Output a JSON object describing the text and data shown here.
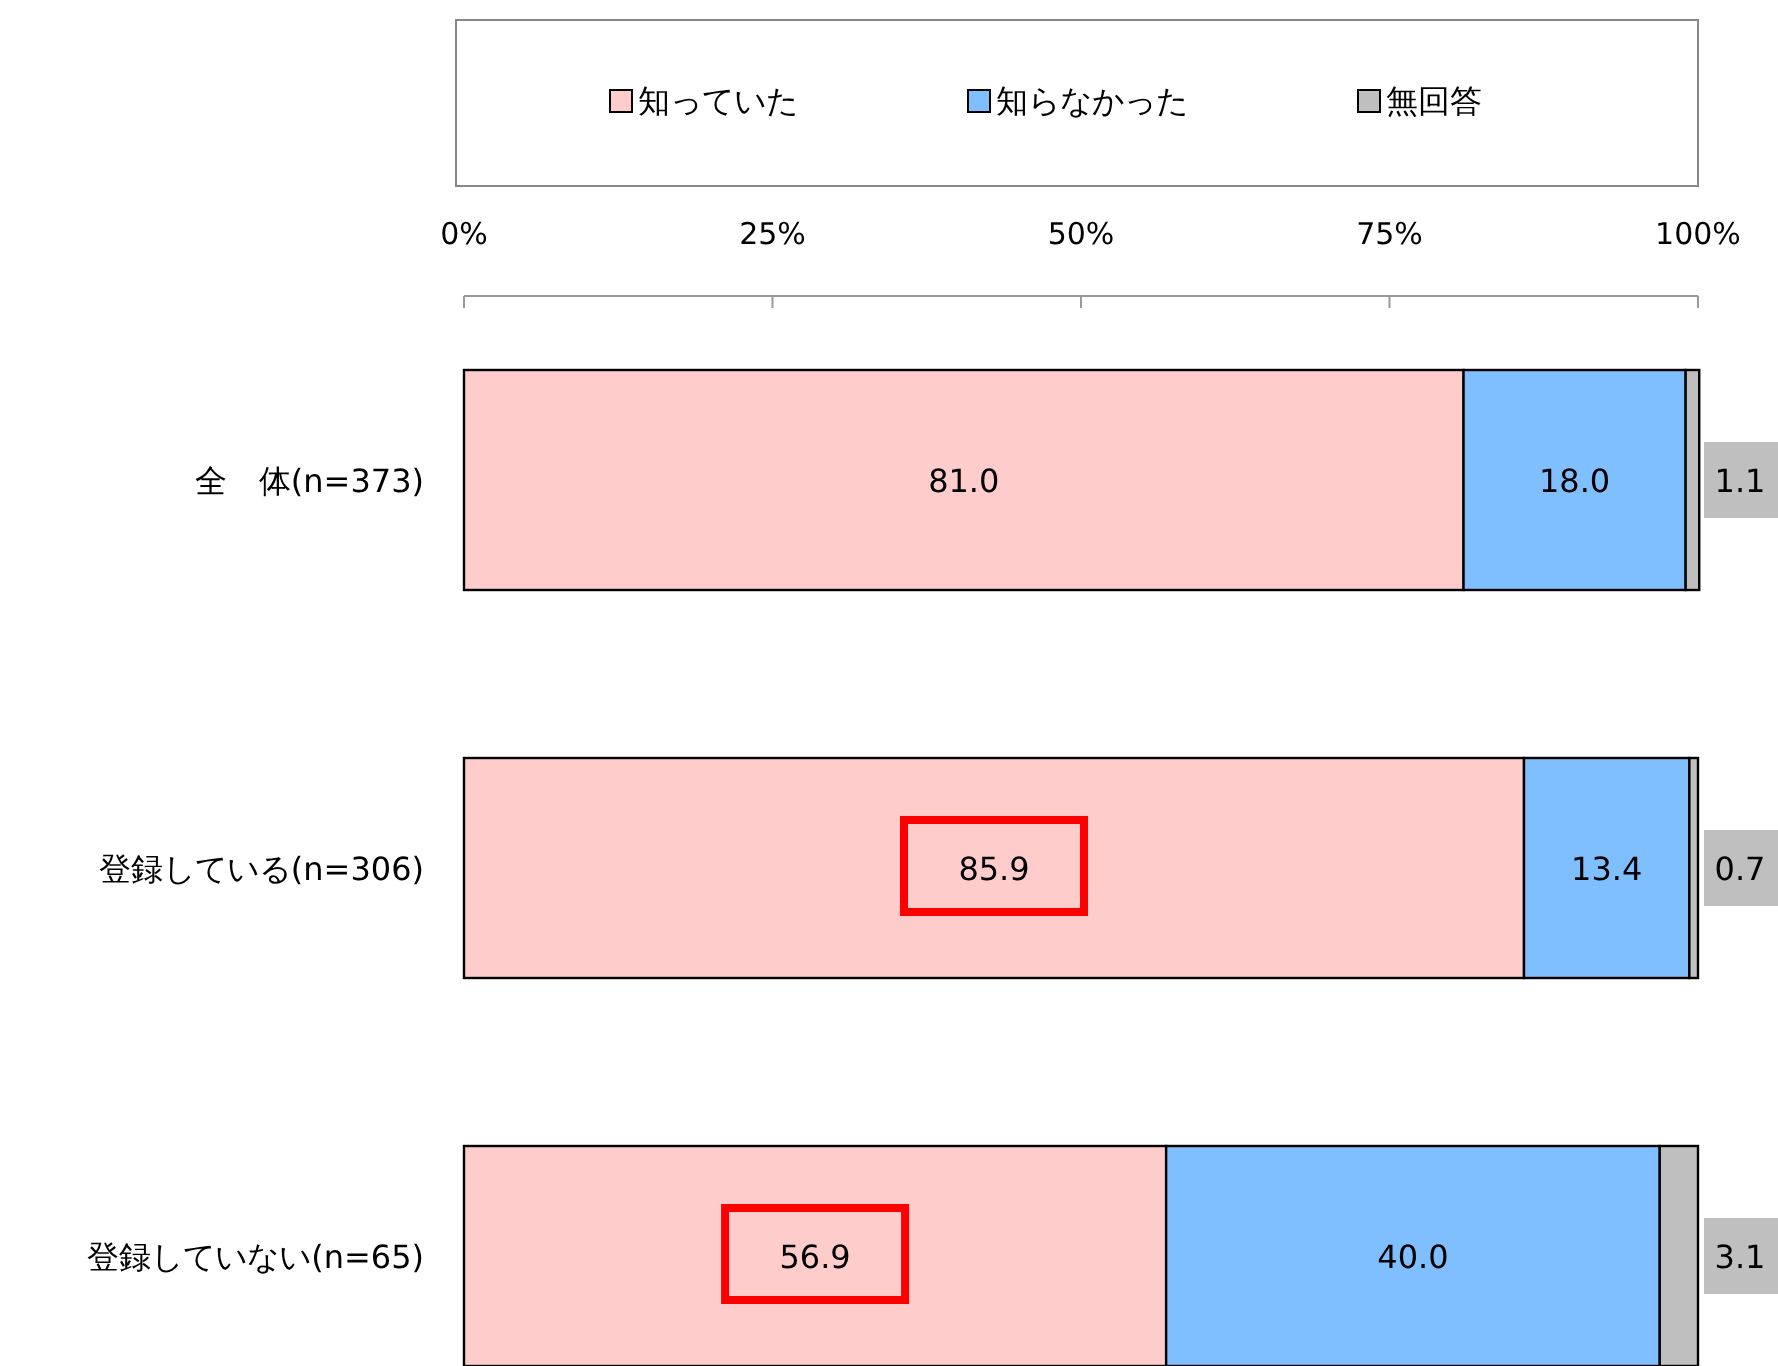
{
  "chart_data": {
    "type": "bar",
    "orientation": "horizontal",
    "stacked": true,
    "legend": "top",
    "grid": false,
    "categories": [
      "全　体(n=373)",
      "登録している(n=306)",
      "登録していない(n=65)"
    ],
    "series": [
      {
        "name": "知っていた",
        "color": "#ffcccc",
        "values": [
          81.0,
          85.9,
          56.9
        ],
        "value_labels": [
          "81.0",
          "85.9",
          "56.9"
        ]
      },
      {
        "name": "知らなかった",
        "color": "#80bfff",
        "values": [
          18.0,
          13.4,
          40.0
        ],
        "value_labels": [
          "18.0",
          "13.4",
          "40.0"
        ]
      },
      {
        "name": "無回答",
        "color": "#bfbfbf",
        "values": [
          1.1,
          0.7,
          3.1
        ],
        "value_labels": [
          "1.1",
          "0.7",
          "3.1"
        ]
      }
    ],
    "xlim": [
      0,
      100
    ],
    "xticks": [
      {
        "value": 0,
        "label": "0%"
      },
      {
        "value": 25,
        "label": "25%"
      },
      {
        "value": 50,
        "label": "50%"
      },
      {
        "value": 75,
        "label": "75%"
      },
      {
        "value": 100,
        "label": "100%"
      }
    ]
  }
}
